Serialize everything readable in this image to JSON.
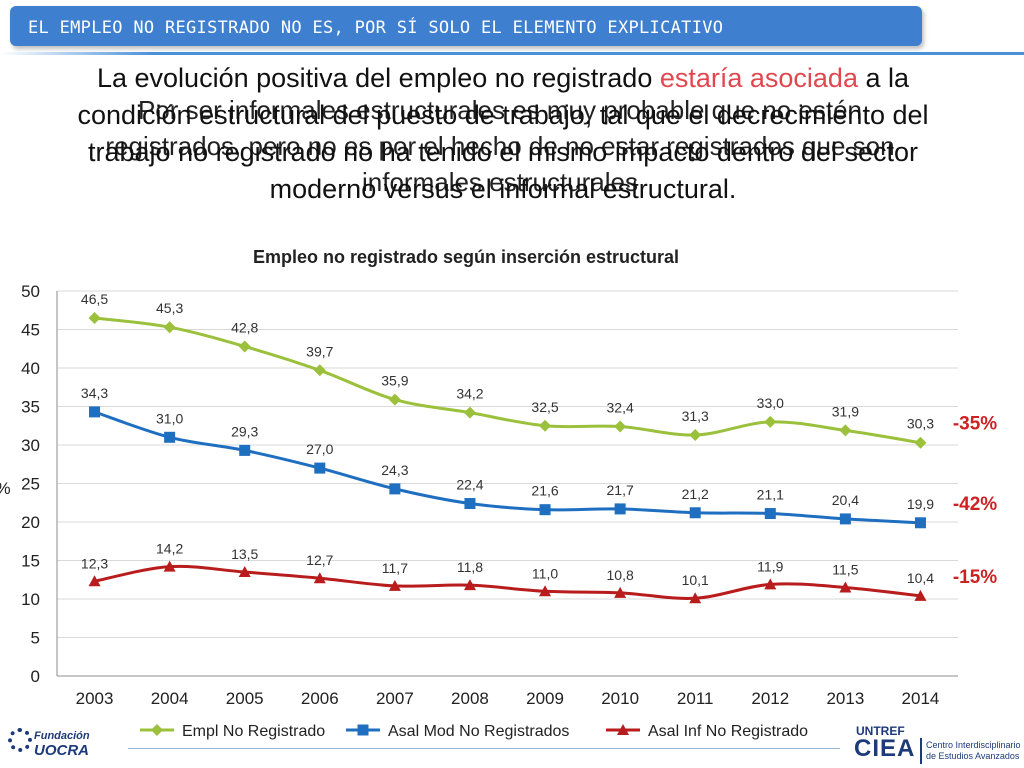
{
  "header": {
    "title": "EL EMPLEO NO REGISTRADO NO ES, POR SÍ SOLO EL ELEMENTO EXPLICATIVO"
  },
  "overlay_text": "Por ser informales estructurales es muy probable que no estén registrados, pero no es por el hecho de no estar registrados que son informales estructurales",
  "main_text": {
    "part1": "La evolución positiva del empleo no registrado ",
    "accent": "estaría asociada",
    "part2": " a la condición estructural del puesto de trabajo, tal que el decrecimiento del trabajo no registrado no ha tenido el mismo impacto dentro del sector moderno versus el informal estructural."
  },
  "chart_data": {
    "type": "line",
    "title": "Empleo no registrado según inserción estructural",
    "xlabel": "",
    "ylabel": "%",
    "categories": [
      "2003",
      "2004",
      "2005",
      "2006",
      "2007",
      "2008",
      "2009",
      "2010",
      "2011",
      "2012",
      "2013",
      "2014"
    ],
    "ylim": [
      0,
      50
    ],
    "yticks": [
      "0",
      "5",
      "10",
      "15",
      "20",
      "25",
      "30",
      "35",
      "40",
      "45",
      "50"
    ],
    "grid": true,
    "legend_position": "bottom",
    "series": [
      {
        "name": "Empl No Registrado",
        "color": "#9bc13c",
        "marker": "diamond",
        "values": [
          46.5,
          45.3,
          42.8,
          39.7,
          35.9,
          34.2,
          32.5,
          32.4,
          31.3,
          33.0,
          31.9,
          30.3
        ],
        "labels": [
          "46,5",
          "45,3",
          "42,8",
          "39,7",
          "35,9",
          "34,2",
          "32,5",
          "32,4",
          "31,3",
          "33,0",
          "31,9",
          "30,3"
        ],
        "change": "-35%"
      },
      {
        "name": "Asal Mod No Registrados",
        "color": "#1f6fc0",
        "marker": "square",
        "values": [
          34.3,
          31.0,
          29.3,
          27.0,
          24.3,
          22.4,
          21.6,
          21.7,
          21.2,
          21.1,
          20.4,
          19.9
        ],
        "labels": [
          "34,3",
          "31,0",
          "29,3",
          "27,0",
          "24,3",
          "22,4",
          "21,6",
          "21,7",
          "21,2",
          "21,1",
          "20,4",
          "19,9"
        ],
        "change": "-42%"
      },
      {
        "name": "Asal Inf No Registrado",
        "color": "#b81c1c",
        "marker": "triangle",
        "values": [
          12.3,
          14.2,
          13.5,
          12.7,
          11.7,
          11.8,
          11.0,
          10.8,
          10.1,
          11.9,
          11.5,
          10.4
        ],
        "labels": [
          "12,3",
          "14,2",
          "13,5",
          "12,7",
          "11,7",
          "11,8",
          "11,0",
          "10,8",
          "10,1",
          "11,9",
          "11,5",
          "10,4"
        ],
        "change": "-15%"
      }
    ],
    "change_color": "#cc2222"
  },
  "logos": {
    "left": {
      "line1": "Fundación",
      "line2": "UOCRA"
    },
    "right": {
      "untref": "UNTREF",
      "ciea": "CIEA",
      "desc1": "Centro Interdisciplinario",
      "desc2": "de Estudios Avanzados"
    }
  }
}
